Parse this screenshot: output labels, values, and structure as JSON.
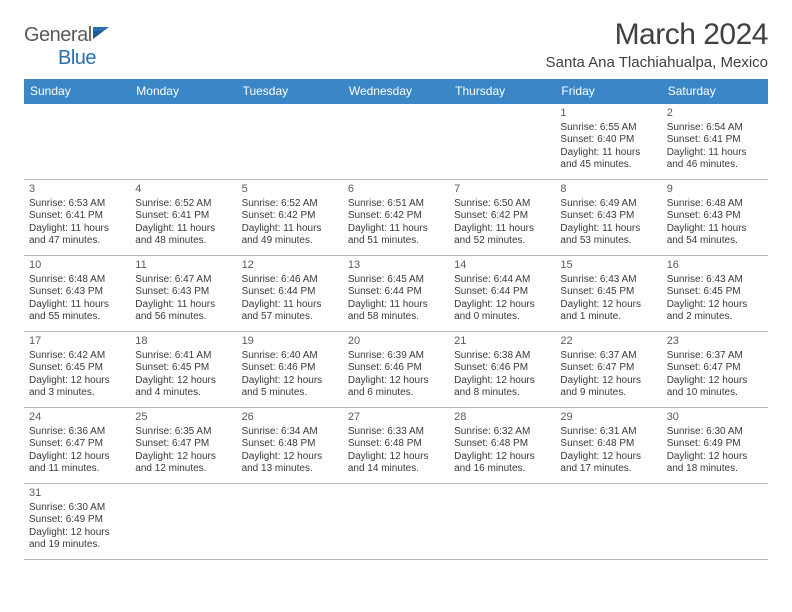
{
  "logo": {
    "general": "General",
    "blue": "Blue"
  },
  "title": "March 2024",
  "location": "Santa Ana Tlachiahualpa, Mexico",
  "colors": {
    "header_bg": "#3b86c6",
    "header_text": "#ffffff",
    "row_border_top": "#3b86c6",
    "row_border_bottom": "#b8b8b8",
    "body_text": "#3a3a3a",
    "title_text": "#404040",
    "logo_gray": "#5a5a5a",
    "logo_blue": "#2a6db0"
  },
  "weekdays": [
    "Sunday",
    "Monday",
    "Tuesday",
    "Wednesday",
    "Thursday",
    "Friday",
    "Saturday"
  ],
  "weeks": [
    [
      {
        "day": null
      },
      {
        "day": null
      },
      {
        "day": null
      },
      {
        "day": null
      },
      {
        "day": null
      },
      {
        "day": "1",
        "sunrise": "Sunrise: 6:55 AM",
        "sunset": "Sunset: 6:40 PM",
        "dl1": "Daylight: 11 hours",
        "dl2": "and 45 minutes."
      },
      {
        "day": "2",
        "sunrise": "Sunrise: 6:54 AM",
        "sunset": "Sunset: 6:41 PM",
        "dl1": "Daylight: 11 hours",
        "dl2": "and 46 minutes."
      }
    ],
    [
      {
        "day": "3",
        "sunrise": "Sunrise: 6:53 AM",
        "sunset": "Sunset: 6:41 PM",
        "dl1": "Daylight: 11 hours",
        "dl2": "and 47 minutes."
      },
      {
        "day": "4",
        "sunrise": "Sunrise: 6:52 AM",
        "sunset": "Sunset: 6:41 PM",
        "dl1": "Daylight: 11 hours",
        "dl2": "and 48 minutes."
      },
      {
        "day": "5",
        "sunrise": "Sunrise: 6:52 AM",
        "sunset": "Sunset: 6:42 PM",
        "dl1": "Daylight: 11 hours",
        "dl2": "and 49 minutes."
      },
      {
        "day": "6",
        "sunrise": "Sunrise: 6:51 AM",
        "sunset": "Sunset: 6:42 PM",
        "dl1": "Daylight: 11 hours",
        "dl2": "and 51 minutes."
      },
      {
        "day": "7",
        "sunrise": "Sunrise: 6:50 AM",
        "sunset": "Sunset: 6:42 PM",
        "dl1": "Daylight: 11 hours",
        "dl2": "and 52 minutes."
      },
      {
        "day": "8",
        "sunrise": "Sunrise: 6:49 AM",
        "sunset": "Sunset: 6:43 PM",
        "dl1": "Daylight: 11 hours",
        "dl2": "and 53 minutes."
      },
      {
        "day": "9",
        "sunrise": "Sunrise: 6:48 AM",
        "sunset": "Sunset: 6:43 PM",
        "dl1": "Daylight: 11 hours",
        "dl2": "and 54 minutes."
      }
    ],
    [
      {
        "day": "10",
        "sunrise": "Sunrise: 6:48 AM",
        "sunset": "Sunset: 6:43 PM",
        "dl1": "Daylight: 11 hours",
        "dl2": "and 55 minutes."
      },
      {
        "day": "11",
        "sunrise": "Sunrise: 6:47 AM",
        "sunset": "Sunset: 6:43 PM",
        "dl1": "Daylight: 11 hours",
        "dl2": "and 56 minutes."
      },
      {
        "day": "12",
        "sunrise": "Sunrise: 6:46 AM",
        "sunset": "Sunset: 6:44 PM",
        "dl1": "Daylight: 11 hours",
        "dl2": "and 57 minutes."
      },
      {
        "day": "13",
        "sunrise": "Sunrise: 6:45 AM",
        "sunset": "Sunset: 6:44 PM",
        "dl1": "Daylight: 11 hours",
        "dl2": "and 58 minutes."
      },
      {
        "day": "14",
        "sunrise": "Sunrise: 6:44 AM",
        "sunset": "Sunset: 6:44 PM",
        "dl1": "Daylight: 12 hours",
        "dl2": "and 0 minutes."
      },
      {
        "day": "15",
        "sunrise": "Sunrise: 6:43 AM",
        "sunset": "Sunset: 6:45 PM",
        "dl1": "Daylight: 12 hours",
        "dl2": "and 1 minute."
      },
      {
        "day": "16",
        "sunrise": "Sunrise: 6:43 AM",
        "sunset": "Sunset: 6:45 PM",
        "dl1": "Daylight: 12 hours",
        "dl2": "and 2 minutes."
      }
    ],
    [
      {
        "day": "17",
        "sunrise": "Sunrise: 6:42 AM",
        "sunset": "Sunset: 6:45 PM",
        "dl1": "Daylight: 12 hours",
        "dl2": "and 3 minutes."
      },
      {
        "day": "18",
        "sunrise": "Sunrise: 6:41 AM",
        "sunset": "Sunset: 6:45 PM",
        "dl1": "Daylight: 12 hours",
        "dl2": "and 4 minutes."
      },
      {
        "day": "19",
        "sunrise": "Sunrise: 6:40 AM",
        "sunset": "Sunset: 6:46 PM",
        "dl1": "Daylight: 12 hours",
        "dl2": "and 5 minutes."
      },
      {
        "day": "20",
        "sunrise": "Sunrise: 6:39 AM",
        "sunset": "Sunset: 6:46 PM",
        "dl1": "Daylight: 12 hours",
        "dl2": "and 6 minutes."
      },
      {
        "day": "21",
        "sunrise": "Sunrise: 6:38 AM",
        "sunset": "Sunset: 6:46 PM",
        "dl1": "Daylight: 12 hours",
        "dl2": "and 8 minutes."
      },
      {
        "day": "22",
        "sunrise": "Sunrise: 6:37 AM",
        "sunset": "Sunset: 6:47 PM",
        "dl1": "Daylight: 12 hours",
        "dl2": "and 9 minutes."
      },
      {
        "day": "23",
        "sunrise": "Sunrise: 6:37 AM",
        "sunset": "Sunset: 6:47 PM",
        "dl1": "Daylight: 12 hours",
        "dl2": "and 10 minutes."
      }
    ],
    [
      {
        "day": "24",
        "sunrise": "Sunrise: 6:36 AM",
        "sunset": "Sunset: 6:47 PM",
        "dl1": "Daylight: 12 hours",
        "dl2": "and 11 minutes."
      },
      {
        "day": "25",
        "sunrise": "Sunrise: 6:35 AM",
        "sunset": "Sunset: 6:47 PM",
        "dl1": "Daylight: 12 hours",
        "dl2": "and 12 minutes."
      },
      {
        "day": "26",
        "sunrise": "Sunrise: 6:34 AM",
        "sunset": "Sunset: 6:48 PM",
        "dl1": "Daylight: 12 hours",
        "dl2": "and 13 minutes."
      },
      {
        "day": "27",
        "sunrise": "Sunrise: 6:33 AM",
        "sunset": "Sunset: 6:48 PM",
        "dl1": "Daylight: 12 hours",
        "dl2": "and 14 minutes."
      },
      {
        "day": "28",
        "sunrise": "Sunrise: 6:32 AM",
        "sunset": "Sunset: 6:48 PM",
        "dl1": "Daylight: 12 hours",
        "dl2": "and 16 minutes."
      },
      {
        "day": "29",
        "sunrise": "Sunrise: 6:31 AM",
        "sunset": "Sunset: 6:48 PM",
        "dl1": "Daylight: 12 hours",
        "dl2": "and 17 minutes."
      },
      {
        "day": "30",
        "sunrise": "Sunrise: 6:30 AM",
        "sunset": "Sunset: 6:49 PM",
        "dl1": "Daylight: 12 hours",
        "dl2": "and 18 minutes."
      }
    ],
    [
      {
        "day": "31",
        "sunrise": "Sunrise: 6:30 AM",
        "sunset": "Sunset: 6:49 PM",
        "dl1": "Daylight: 12 hours",
        "dl2": "and 19 minutes."
      },
      {
        "day": null
      },
      {
        "day": null
      },
      {
        "day": null
      },
      {
        "day": null
      },
      {
        "day": null
      },
      {
        "day": null
      }
    ]
  ]
}
